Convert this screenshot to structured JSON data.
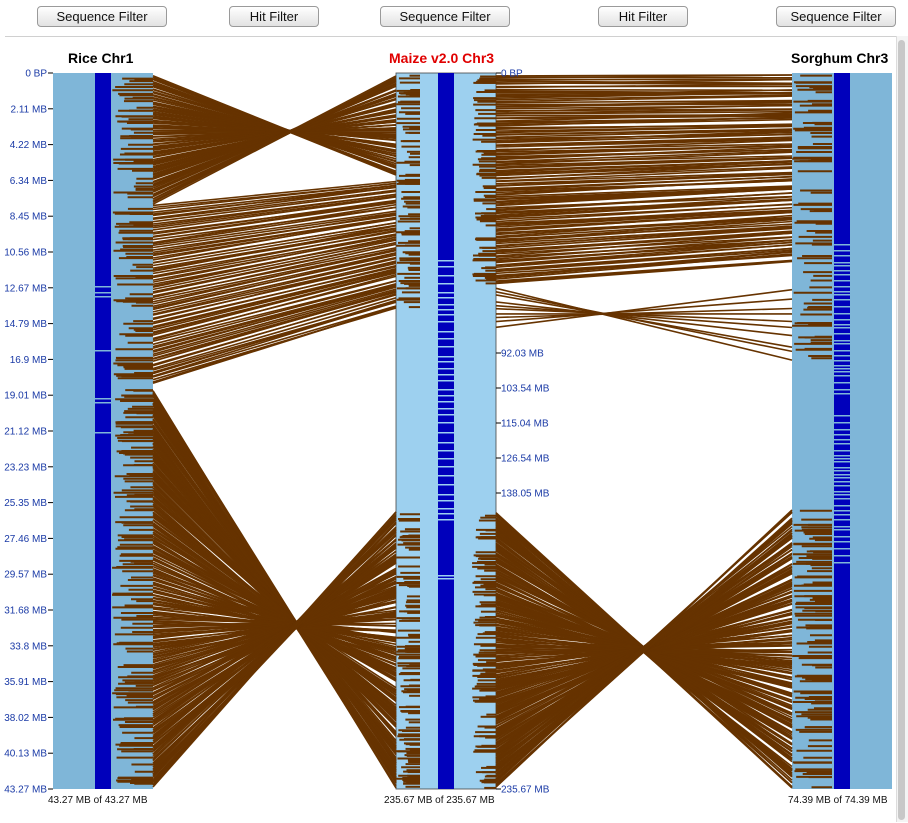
{
  "toolbar": {
    "buttons": [
      "Sequence Filter",
      "Hit Filter",
      "Sequence Filter",
      "Hit Filter",
      "Sequence Filter"
    ]
  },
  "tracks": [
    {
      "title": "Rice Chr1",
      "title_color": "#000000",
      "footer": "43.27 MB of 43.27 MB",
      "ticks": [
        "0 BP",
        "2.11 MB",
        "4.22 MB",
        "6.34 MB",
        "8.45 MB",
        "10.56 MB",
        "12.67 MB",
        "14.79 MB",
        "16.9 MB",
        "19.01 MB",
        "21.12 MB",
        "23.23 MB",
        "25.35 MB",
        "27.46 MB",
        "29.57 MB",
        "31.68 MB",
        "33.8 MB",
        "35.91 MB",
        "38.02 MB",
        "40.13 MB",
        "43.27 MB"
      ]
    },
    {
      "title": "Maize v2.0 Chr3",
      "title_color": "#e00000",
      "footer": "235.67 MB of 235.67 MB",
      "ticks": [
        "0 BP",
        "92.03 MB",
        "103.54 MB",
        "115.04 MB",
        "126.54 MB",
        "138.05 MB",
        "235.67 MB"
      ]
    },
    {
      "title": "Sorghum Chr3",
      "title_color": "#000000",
      "footer": "74.39 MB of 74.39 MB"
    }
  ],
  "colors": {
    "synteny": "#663300",
    "track_bg": "#7fb6d8",
    "maize_bg": "#9dd0ef",
    "chromosome": "#0000bb",
    "tick_label": "#1a3aa6"
  }
}
